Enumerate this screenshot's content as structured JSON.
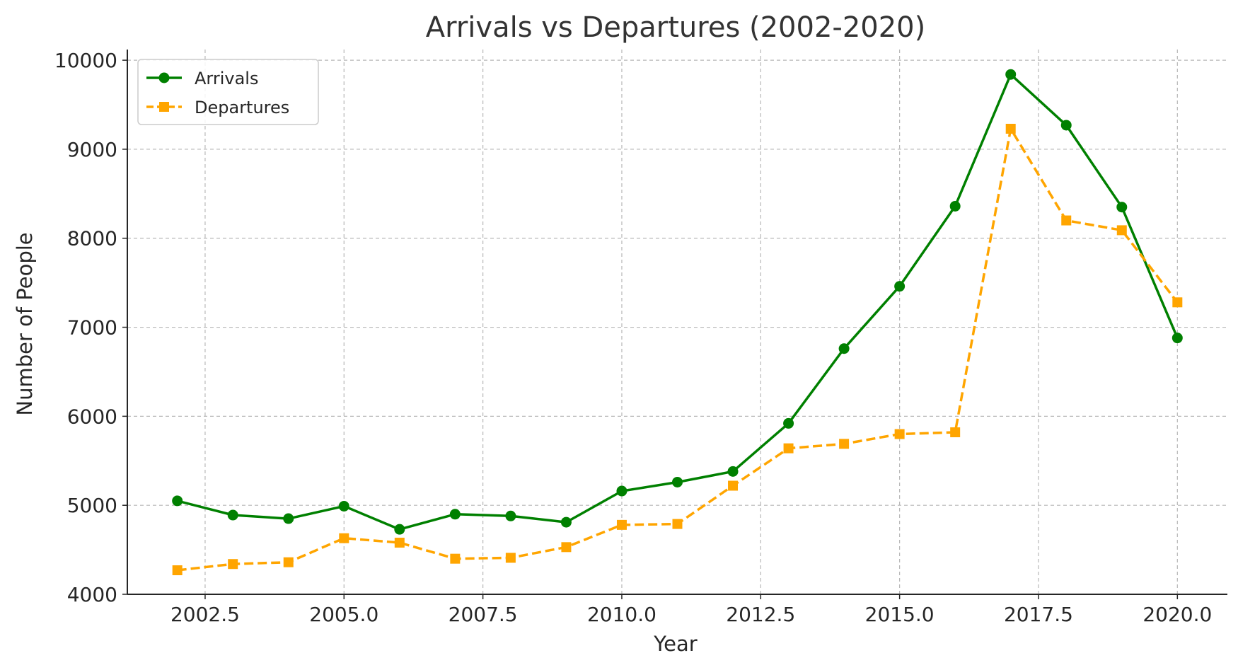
{
  "chart_data": {
    "type": "line",
    "title": "Arrivals vs Departures (2002-2020)",
    "xlabel": "Year",
    "ylabel": "Number of People",
    "x": [
      2002,
      2003,
      2004,
      2005,
      2006,
      2007,
      2008,
      2009,
      2010,
      2011,
      2012,
      2013,
      2014,
      2015,
      2016,
      2017,
      2018,
      2019,
      2020
    ],
    "series": [
      {
        "name": "Arrivals",
        "color": "#008000",
        "marker": "circle",
        "linestyle": "solid",
        "values": [
          5050,
          4890,
          4850,
          4990,
          4730,
          4900,
          4880,
          4810,
          5160,
          5260,
          5380,
          5920,
          6760,
          7460,
          8360,
          9840,
          9270,
          8350,
          6880
        ]
      },
      {
        "name": "Departures",
        "color": "#FFA500",
        "marker": "square",
        "linestyle": "dashed",
        "values": [
          4270,
          4340,
          4360,
          4630,
          4580,
          4400,
          4410,
          4530,
          4780,
          4790,
          5220,
          5640,
          5690,
          5800,
          5820,
          9230,
          8200,
          8090,
          7280
        ]
      }
    ],
    "xticks": [
      2002.5,
      2005.0,
      2007.5,
      2010.0,
      2012.5,
      2015.0,
      2017.5,
      2020.0
    ],
    "xtick_labels": [
      "2002.5",
      "2005.0",
      "2007.5",
      "2010.0",
      "2012.5",
      "2015.0",
      "2017.5",
      "2020.0"
    ],
    "yticks": [
      4000,
      5000,
      6000,
      7000,
      8000,
      9000,
      10000
    ],
    "ytick_labels": [
      "4000",
      "5000",
      "6000",
      "7000",
      "8000",
      "9000",
      "10000"
    ],
    "xlim": [
      2001.1,
      2020.9
    ],
    "ylim": [
      4000,
      10120
    ],
    "grid": true,
    "legend_position": "top-left"
  }
}
